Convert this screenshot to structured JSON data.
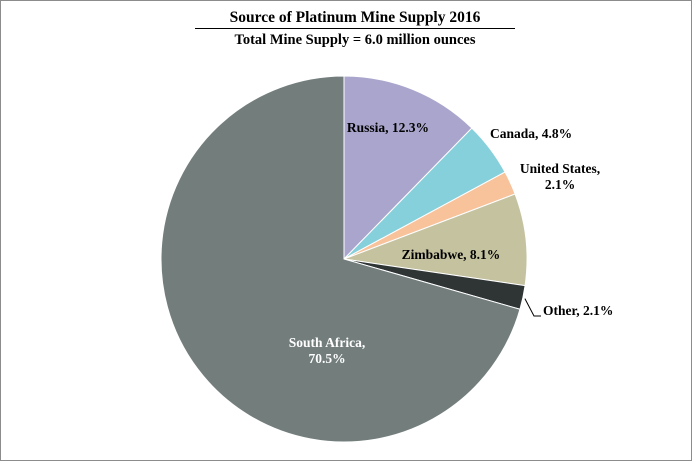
{
  "chart_data": {
    "type": "pie",
    "title": "Source of Platinum Mine Supply 2016",
    "subtitle": "Total Mine Supply =  6.0 million ounces",
    "slices": [
      {
        "name": "Russia",
        "value": 12.3,
        "color": "#a9a5cc",
        "label_lines": [
          "Russia, 12.3%"
        ],
        "label_color": "#000000",
        "label_anchor": "middle",
        "label_at": [
          388,
          132
        ]
      },
      {
        "name": "Canada",
        "value": 4.8,
        "color": "#86d0dc",
        "label_lines": [
          "Canada, 4.8%"
        ],
        "label_color": "#000000",
        "label_anchor": "start",
        "label_at": [
          490,
          138
        ]
      },
      {
        "name": "United States",
        "value": 2.1,
        "color": "#f8c29b",
        "label_lines": [
          "United States,",
          "2.1%"
        ],
        "label_color": "#000000",
        "label_anchor": "middle",
        "label_at": [
          560,
          173
        ]
      },
      {
        "name": "Zimbabwe",
        "value": 8.1,
        "color": "#c5c2a0",
        "label_lines": [
          "Zimbabwe, 8.1%"
        ],
        "label_color": "#000000",
        "label_anchor": "middle",
        "label_at": [
          451,
          259
        ]
      },
      {
        "name": "Other",
        "value": 2.1,
        "color": "#2f3435",
        "label_lines": [
          "Other, 2.1%"
        ],
        "label_color": "#000000",
        "label_anchor": "start",
        "label_at": [
          543,
          315
        ]
      },
      {
        "name": "South Africa",
        "value": 70.5,
        "color": "#727d7c",
        "label_lines": [
          "South Africa,",
          "70.5%"
        ],
        "label_color": "#ffffff",
        "label_anchor": "middle",
        "label_at": [
          327,
          347
        ]
      }
    ],
    "legend": "none"
  }
}
